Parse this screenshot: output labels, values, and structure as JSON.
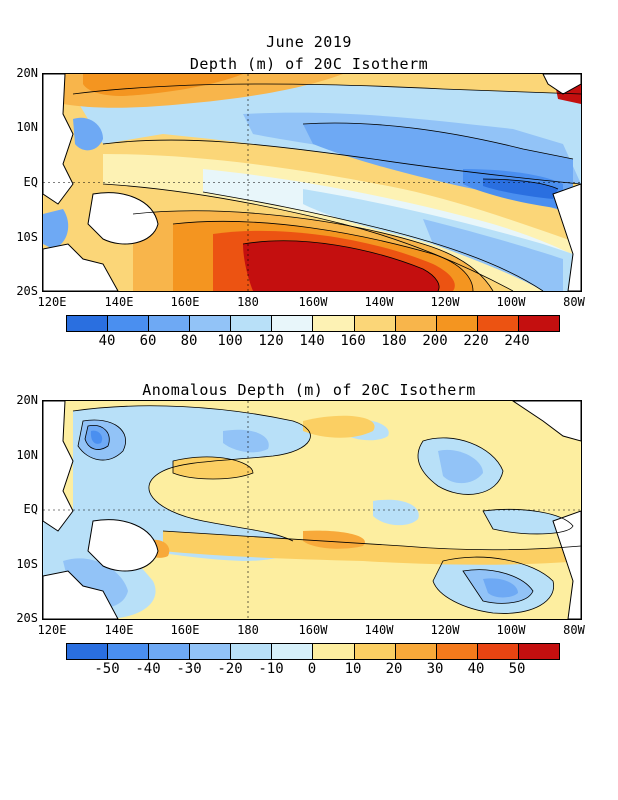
{
  "panel1": {
    "title_line1": "June 2019",
    "title_line2": "Depth (m) of 20C Isotherm",
    "colorbar": {
      "colors": [
        "#2a6fe0",
        "#4a8ff0",
        "#6ea9f4",
        "#92c3f7",
        "#b8e0f8",
        "#e8f6fa",
        "#fdf2b4",
        "#fbd678",
        "#f8b54b",
        "#f49520",
        "#ec5312",
        "#c40f0f"
      ],
      "labels": [
        "40",
        "60",
        "80",
        "100",
        "120",
        "140",
        "160",
        "180",
        "200",
        "220",
        "240"
      ]
    }
  },
  "panel2": {
    "title": "Anomalous Depth (m) of 20C Isotherm",
    "colorbar": {
      "colors": [
        "#2a6fe0",
        "#4a8ff0",
        "#6ea9f4",
        "#92c3f7",
        "#b8e0f8",
        "#d6f0fa",
        "#fdeea0",
        "#fbcf63",
        "#f8a93a",
        "#f47a1c",
        "#e84412",
        "#c40f0f"
      ],
      "labels": [
        "-50",
        "-40",
        "-30",
        "-20",
        "-10",
        "0",
        "10",
        "20",
        "30",
        "40",
        "50"
      ]
    }
  },
  "axes": {
    "lat_labels": [
      "20N",
      "10N",
      "EQ",
      "10S",
      "20S"
    ],
    "lon_labels": [
      "120E",
      "140E",
      "160E",
      "180",
      "160W",
      "140W",
      "120W",
      "100W",
      "80W"
    ]
  }
}
